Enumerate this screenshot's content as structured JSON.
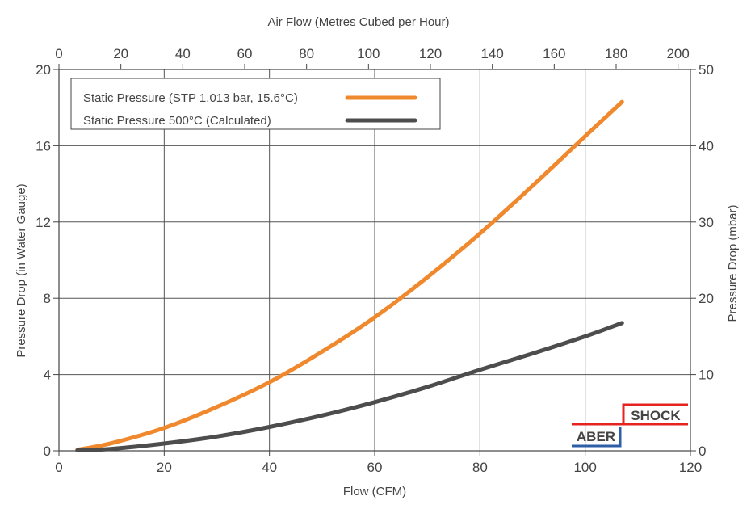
{
  "chart_data": {
    "type": "line",
    "xlabel": "Flow (CFM)",
    "xlabel_top": "Air Flow (Metres Cubed per Hour)",
    "ylabel": "Pressure Drop (in Water Gauge)",
    "ylabel_right": "Pressure Drop (mbar)",
    "xlim": [
      0,
      120
    ],
    "ylim": [
      0,
      20
    ],
    "xlim_top": [
      0,
      204
    ],
    "ylim_right": [
      0,
      50
    ],
    "x_ticks": [
      "0",
      "20",
      "40",
      "60",
      "80",
      "100",
      "120"
    ],
    "y_ticks": [
      "0",
      "4",
      "8",
      "12",
      "16",
      "20"
    ],
    "x_top_ticks": [
      "0",
      "20",
      "40",
      "60",
      "80",
      "100",
      "120",
      "140",
      "160",
      "180",
      "200"
    ],
    "y_right_ticks": [
      "0",
      "10",
      "20",
      "30",
      "40",
      "50"
    ],
    "grid": true,
    "legend_position": "top-left",
    "series": [
      {
        "name": "Static Pressure (STP 1.013 bar, 15.6°C)",
        "color": "#f0892d",
        "x": [
          3.5,
          10,
          20,
          30,
          40,
          50,
          60,
          70,
          80,
          90,
          100,
          107
        ],
        "y": [
          0.05,
          0.4,
          1.2,
          2.3,
          3.6,
          5.2,
          7.0,
          9.1,
          11.4,
          13.9,
          16.5,
          18.3
        ]
      },
      {
        "name": "Static Pressure 500°C (Calculated)",
        "color": "#4d4d4d",
        "x": [
          3.5,
          10,
          20,
          30,
          40,
          50,
          60,
          70,
          80,
          90,
          100,
          107
        ],
        "y": [
          0.02,
          0.1,
          0.38,
          0.75,
          1.25,
          1.85,
          2.55,
          3.35,
          4.25,
          5.1,
          6.0,
          6.7
        ]
      }
    ]
  },
  "logo": {
    "text_top": "SHOCK",
    "text_bottom": "ABER",
    "color_red": "#e52421",
    "color_blue": "#2e5ea8"
  }
}
